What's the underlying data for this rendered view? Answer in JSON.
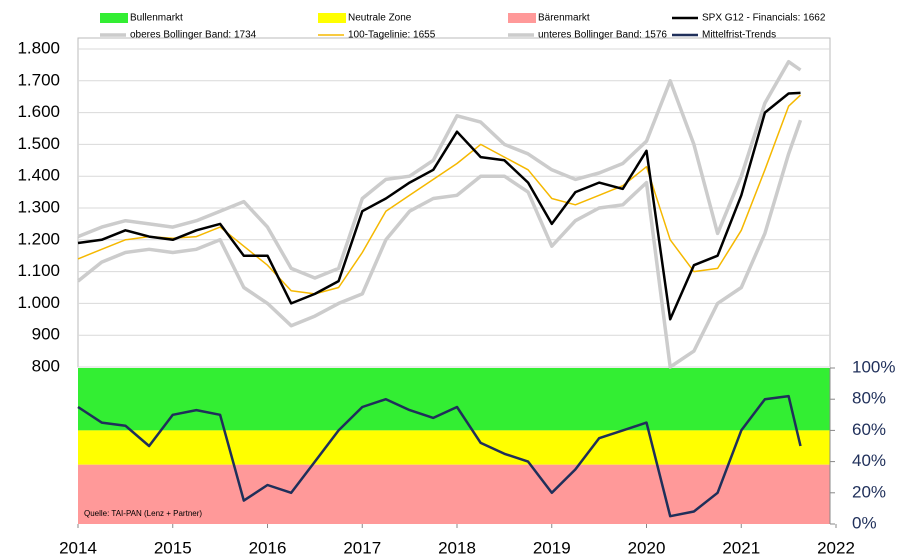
{
  "chart_data": [
    {
      "type": "line",
      "x": [
        2014,
        2014.25,
        2014.5,
        2014.75,
        2015,
        2015.25,
        2015.5,
        2015.75,
        2016,
        2016.25,
        2016.5,
        2016.75,
        2017,
        2017.25,
        2017.5,
        2017.75,
        2018,
        2018.25,
        2018.5,
        2018.75,
        2019,
        2019.25,
        2019.5,
        2019.75,
        2020,
        2020.25,
        2020.5,
        2020.75,
        2021,
        2021.25,
        2021.5,
        2021.625
      ],
      "xlim": [
        2014,
        2022
      ],
      "ylim": [
        800,
        1800
      ],
      "yticks": [
        800,
        900,
        {
          "value": 1000,
          "label": "1.000"
        },
        {
          "value": 1100,
          "label": "1.100"
        },
        {
          "value": 1200,
          "label": "1.200"
        },
        {
          "value": 1300,
          "label": "1.300"
        },
        {
          "value": 1400,
          "label": "1.400"
        },
        {
          "value": 1500,
          "label": "1.500"
        },
        {
          "value": 1600,
          "label": "1.600"
        },
        {
          "value": 1700,
          "label": "1.700"
        },
        {
          "value": 1800,
          "label": "1.800"
        }
      ],
      "grid": true,
      "series": [
        {
          "name": "oberes Bollinger Band: 1734",
          "color": "#cccccc",
          "values": [
            1210,
            1240,
            1260,
            1250,
            1240,
            1260,
            1290,
            1320,
            1240,
            1110,
            1080,
            1110,
            1330,
            1390,
            1400,
            1450,
            1590,
            1570,
            1500,
            1470,
            1420,
            1390,
            1410,
            1440,
            1510,
            1700,
            1500,
            1220,
            1400,
            1630,
            1760,
            1734
          ]
        },
        {
          "name": "unteres Bollinger Band: 1576",
          "color": "#cccccc",
          "values": [
            1070,
            1130,
            1160,
            1170,
            1160,
            1170,
            1200,
            1050,
            1000,
            930,
            960,
            1000,
            1030,
            1200,
            1290,
            1330,
            1340,
            1400,
            1400,
            1350,
            1180,
            1260,
            1300,
            1310,
            1380,
            800,
            850,
            1000,
            1050,
            1220,
            1470,
            1576
          ]
        },
        {
          "name": "100-Tagelinie: 1655",
          "color": "#f5b800",
          "values": [
            1140,
            1170,
            1200,
            1210,
            1205,
            1210,
            1240,
            1180,
            1120,
            1040,
            1030,
            1050,
            1160,
            1290,
            1340,
            1390,
            1440,
            1500,
            1460,
            1420,
            1330,
            1310,
            1340,
            1370,
            1430,
            1200,
            1100,
            1110,
            1230,
            1420,
            1620,
            1655
          ]
        },
        {
          "name": "SPX G12 - Financials: 1662",
          "color": "#000000",
          "values": [
            1190,
            1200,
            1230,
            1210,
            1200,
            1230,
            1250,
            1150,
            1150,
            1000,
            1030,
            1070,
            1290,
            1330,
            1380,
            1420,
            1540,
            1460,
            1450,
            1380,
            1250,
            1350,
            1380,
            1360,
            1480,
            950,
            1120,
            1150,
            1340,
            1600,
            1660,
            1662
          ]
        }
      ]
    },
    {
      "type": "line",
      "x": [
        2014,
        2014.25,
        2014.5,
        2014.75,
        2015,
        2015.25,
        2015.5,
        2015.75,
        2016,
        2016.25,
        2016.5,
        2016.75,
        2017,
        2017.25,
        2017.5,
        2017.75,
        2018,
        2018.25,
        2018.5,
        2018.75,
        2019,
        2019.25,
        2019.5,
        2019.75,
        2020,
        2020.25,
        2020.5,
        2020.75,
        2021,
        2021.25,
        2021.5,
        2021.625
      ],
      "xlim": [
        2014,
        2022
      ],
      "xticks": [
        2014,
        2015,
        2016,
        2017,
        2018,
        2019,
        2020,
        2021,
        2022
      ],
      "y2lim": [
        0,
        100
      ],
      "y2ticks": [
        {
          "value": 0,
          "label": "0%"
        },
        {
          "value": 20,
          "label": "20%"
        },
        {
          "value": 40,
          "label": "40%"
        },
        {
          "value": 60,
          "label": "60%"
        },
        {
          "value": 80,
          "label": "80%"
        },
        {
          "value": 100,
          "label": "100%"
        }
      ],
      "zones": [
        {
          "name": "Bullenmarkt",
          "color": "#33ee33",
          "range": [
            60,
            100
          ]
        },
        {
          "name": "Neutrale Zone",
          "color": "#ffff00",
          "range": [
            38,
            60
          ]
        },
        {
          "name": "Bärenmarkt",
          "color": "#ff9999",
          "range": [
            0,
            38
          ]
        }
      ],
      "annotation": "Quelle: TAI-PAN (Lenz + Partner)",
      "series": [
        {
          "name": "Mittelfrist-Trends",
          "color": "#1f2f5a",
          "axis": "y2",
          "values": [
            75,
            65,
            63,
            50,
            70,
            73,
            70,
            15,
            25,
            20,
            40,
            60,
            75,
            80,
            73,
            68,
            75,
            52,
            45,
            40,
            20,
            35,
            55,
            60,
            65,
            5,
            8,
            20,
            60,
            80,
            82,
            50
          ]
        }
      ]
    }
  ]
}
